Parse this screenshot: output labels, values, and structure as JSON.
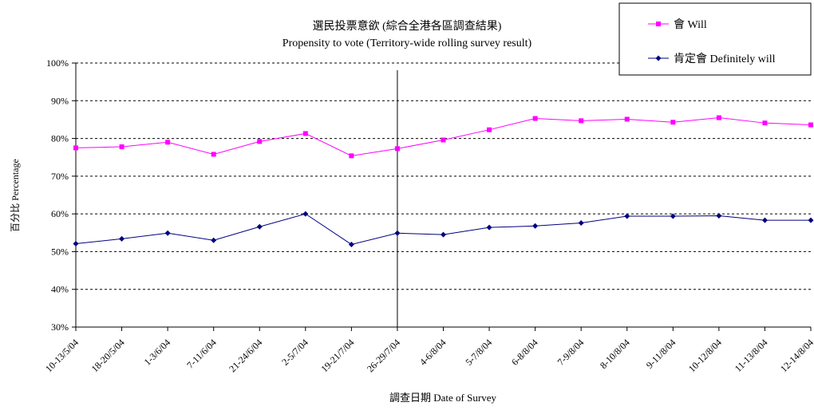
{
  "chart_data": {
    "type": "line",
    "title": "選民投票意欲 (綜合全港各區調查結果)",
    "subtitle": "Propensity to vote (Territory-wide rolling survey result)",
    "xlabel": "調查日期 Date of Survey",
    "ylabel": "百分比 Percentage",
    "ylim": [
      30,
      100
    ],
    "yticks": [
      "30%",
      "40%",
      "50%",
      "60%",
      "70%",
      "80%",
      "90%",
      "100%"
    ],
    "grid": "horizontal-dashed",
    "legend_position": "top-right",
    "categories": [
      "10-13/5/04",
      "18-20/5/04",
      "1-3/6/04",
      "7-11/6/04",
      "21-24/6/04",
      "2-5/7/04",
      "19-21/7/04",
      "26-29/7/04",
      "4-6/8/04",
      "5-7/8/04",
      "6-8/8/04",
      "7-9/8/04",
      "8-10/8/04",
      "9-11/8/04",
      "10-12/8/04",
      "11-13/8/04",
      "12-14/8/04"
    ],
    "divider_after_category": "26-29/7/04",
    "series": [
      {
        "name": "會 Will",
        "color": "#ff00ff",
        "marker": "square",
        "values": [
          77.5,
          77.8,
          79,
          75.8,
          79.2,
          81.3,
          75.4,
          77.3,
          79.6,
          82.3,
          85.3,
          84.7,
          85.1,
          84.3,
          85.5,
          84.1,
          83.6
        ]
      },
      {
        "name": "肯定會 Definitely will",
        "color": "#000080",
        "marker": "diamond",
        "values": [
          52.1,
          53.4,
          54.9,
          53,
          56.6,
          60,
          51.9,
          54.9,
          54.5,
          56.4,
          56.8,
          57.6,
          59.4,
          59.4,
          59.5,
          58.3,
          58.3
        ]
      }
    ]
  }
}
